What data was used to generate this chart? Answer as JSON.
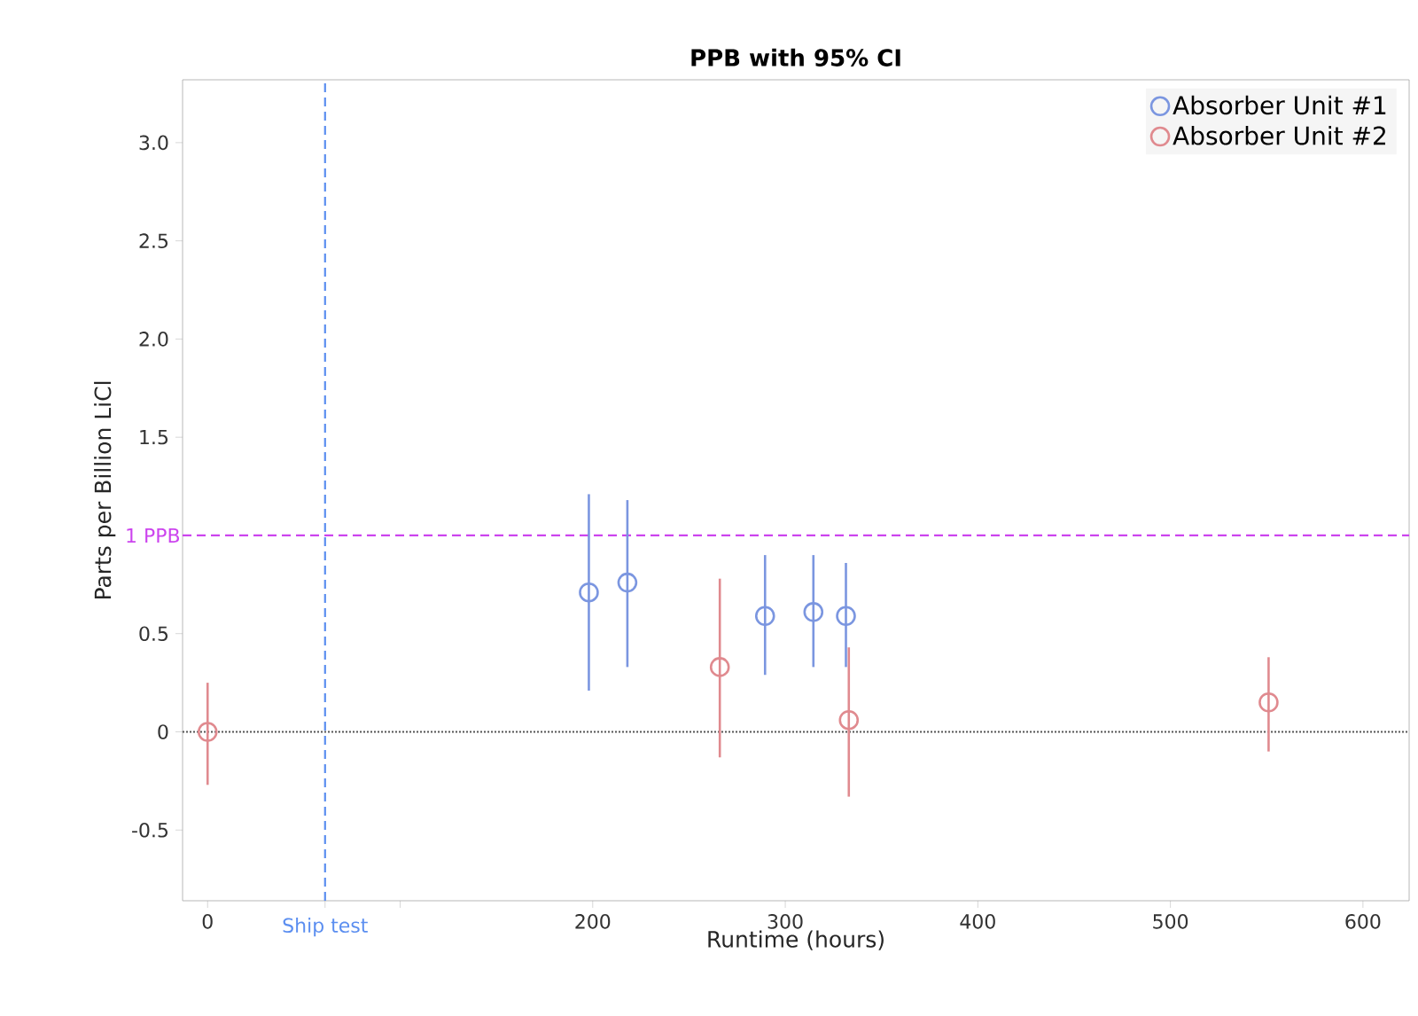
{
  "chart_data": {
    "type": "scatter",
    "title": "PPB with 95% CI",
    "xlabel": "Runtime (hours)",
    "ylabel": "Parts per Billion LiCl",
    "xlim": [
      -13,
      624
    ],
    "ylim": [
      -0.86,
      3.32
    ],
    "xticks": [
      0,
      {
        "value": 61,
        "label": null
      },
      {
        "value": 100,
        "label": null
      },
      200,
      300,
      400,
      500,
      600
    ],
    "yticks": [
      -0.5,
      0,
      0.5,
      1.5,
      {
        "value": 2,
        "label": "2.0"
      },
      2.5,
      {
        "value": 3,
        "label": "3.0"
      }
    ],
    "marker": "circle",
    "legend": "top right",
    "grid": false,
    "series": [
      {
        "name": "Absorber Unit #1",
        "color": "#7b96e0",
        "x": [
          198,
          218,
          289.5,
          314.6,
          331.5
        ],
        "values": [
          0.71,
          0.76,
          0.59,
          0.61,
          0.59
        ],
        "errors": [
          [
            0.21,
            1.21
          ],
          [
            0.33,
            1.18
          ],
          [
            0.29,
            0.9
          ],
          [
            0.33,
            0.9
          ],
          [
            0.33,
            0.86
          ]
        ]
      },
      {
        "name": "Absorber Unit #2",
        "color": "#e08a8f",
        "x": [
          0,
          266,
          333,
          551
        ],
        "values": [
          0.0,
          0.33,
          0.06,
          0.15
        ],
        "errors": [
          [
            -0.27,
            0.25
          ],
          [
            -0.13,
            0.78
          ],
          [
            -0.33,
            0.43
          ],
          [
            -0.1,
            0.38
          ]
        ]
      }
    ],
    "ref_lines": [
      {
        "axis": "y",
        "value": 0,
        "color": "#555555",
        "line_style": "dotted"
      },
      {
        "axis": "y",
        "value": 1,
        "label": "1 PPB",
        "color": "#cc44ee",
        "line_style": "dashed"
      },
      {
        "axis": "x",
        "value": 61,
        "label": "Ship test",
        "color": "#5b8ef0",
        "line_style": "dashed"
      }
    ]
  }
}
